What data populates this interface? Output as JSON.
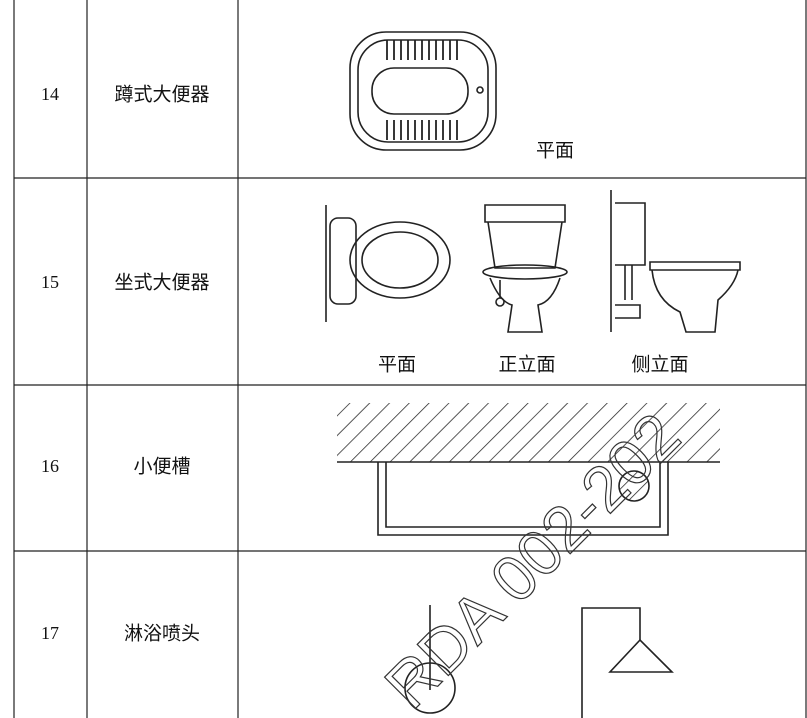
{
  "table": {
    "rows": [
      {
        "number": "14",
        "name": "蹲式大便器",
        "captions": [
          "平面"
        ]
      },
      {
        "number": "15",
        "name": "坐式大便器",
        "captions": [
          "平面",
          "正立面",
          "侧立面"
        ]
      },
      {
        "number": "16",
        "name": "小便槽",
        "captions": []
      },
      {
        "number": "17",
        "name": "淋浴喷头",
        "captions": []
      }
    ]
  },
  "watermark": "RDA 002-202"
}
